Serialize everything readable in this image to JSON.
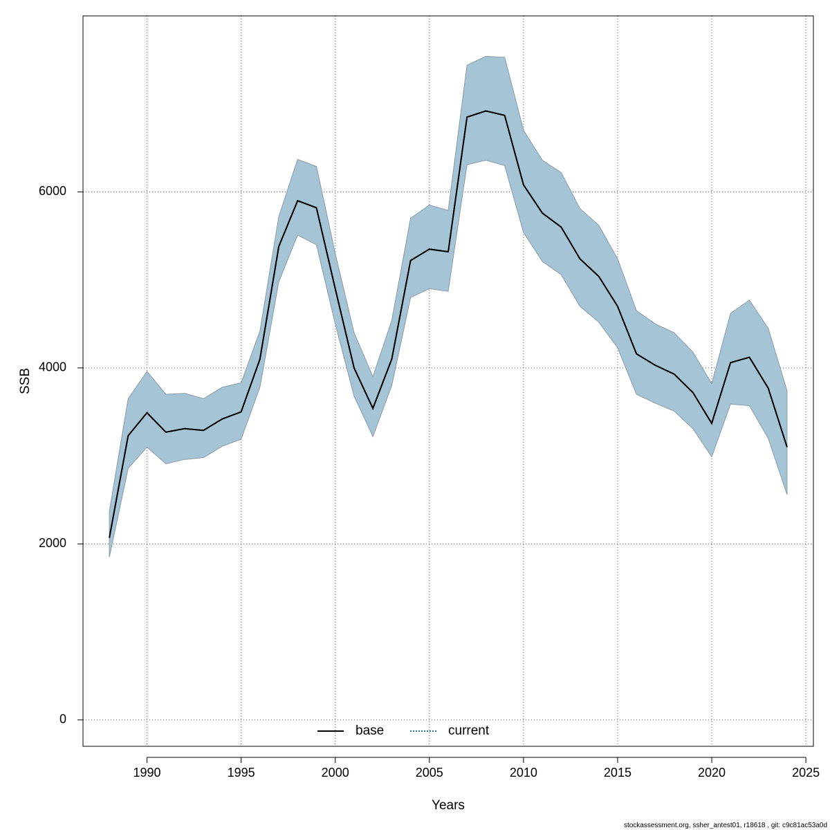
{
  "chart_data": {
    "type": "area",
    "xlabel": "Years",
    "ylabel": "SSB",
    "xlim": [
      1986.6,
      2025.4
    ],
    "ylim": [
      -300,
      8000
    ],
    "x_ticks": [
      1990,
      1995,
      2000,
      2005,
      2010,
      2015,
      2020,
      2025
    ],
    "y_ticks": [
      0,
      2000,
      4000,
      6000
    ],
    "grid": true,
    "legend_position": "bottom-center",
    "colors": {
      "band_fill": "#a5c4d6",
      "band_edge": "#8899a6",
      "base_line": "#000000",
      "current_line": "#1f6fa8"
    },
    "years": [
      1988,
      1989,
      1990,
      1991,
      1992,
      1993,
      1994,
      1995,
      1996,
      1997,
      1998,
      1999,
      2000,
      2001,
      2002,
      2003,
      2004,
      2005,
      2006,
      2007,
      2008,
      2009,
      2010,
      2011,
      2012,
      2013,
      2014,
      2015,
      2016,
      2017,
      2018,
      2019,
      2020,
      2021,
      2022,
      2023,
      2024
    ],
    "series": [
      {
        "name": "base",
        "style": "solid",
        "values": [
          2070,
          3230,
          3490,
          3270,
          3310,
          3290,
          3420,
          3500,
          4100,
          5380,
          5900,
          5820,
          4900,
          4000,
          3540,
          4100,
          5220,
          5350,
          5320,
          6850,
          6920,
          6870,
          6080,
          5760,
          5600,
          5240,
          5040,
          4700,
          4160,
          4030,
          3930,
          3720,
          3370,
          4060,
          4120,
          3770,
          3100
        ]
      },
      {
        "name": "current",
        "style": "dotted",
        "values": [
          2070,
          3230,
          3490,
          3270,
          3310,
          3290,
          3420,
          3500,
          4100,
          5380,
          5900,
          5820,
          4900,
          4000,
          3540,
          4100,
          5220,
          5350,
          5320,
          6850,
          6920,
          6870,
          6080,
          5760,
          5600,
          5240,
          5040,
          4700,
          4160,
          4030,
          3930,
          3720,
          3370,
          4060,
          4120,
          3770,
          3100
        ]
      }
    ],
    "confidence_band": {
      "lower": [
        1850,
        2860,
        3100,
        2910,
        2960,
        2980,
        3110,
        3190,
        3780,
        4980,
        5510,
        5400,
        4500,
        3680,
        3220,
        3800,
        4800,
        4900,
        4870,
        6310,
        6360,
        6300,
        5540,
        5210,
        5060,
        4700,
        4520,
        4230,
        3700,
        3600,
        3510,
        3310,
        2990,
        3590,
        3570,
        3200,
        2560
      ],
      "upper": [
        2370,
        3650,
        3960,
        3700,
        3710,
        3650,
        3780,
        3830,
        4420,
        5720,
        6370,
        6290,
        5300,
        4400,
        3900,
        4540,
        5700,
        5850,
        5790,
        7440,
        7540,
        7530,
        6700,
        6360,
        6220,
        5810,
        5620,
        5240,
        4650,
        4500,
        4400,
        4180,
        3820,
        4620,
        4770,
        4450,
        3740
      ]
    },
    "footer": "stockassessment.org, ssher_antest01, r18618 , git: c9c81ac53a0d"
  }
}
